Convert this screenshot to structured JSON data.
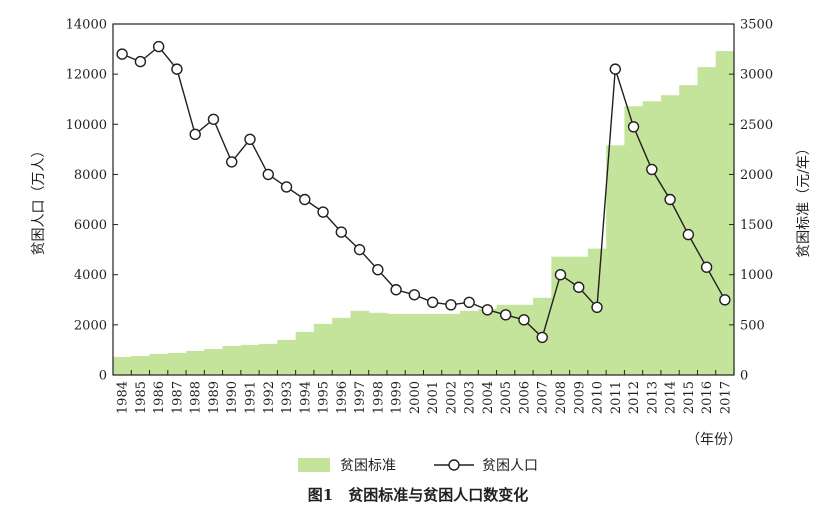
{
  "chart_data": {
    "type": "bar+line",
    "caption": "图1　贫困标准与贫困人口数变化",
    "x_unit_label": "（年份）",
    "categories": [
      "1984",
      "1985",
      "1986",
      "1987",
      "1988",
      "1989",
      "1990",
      "1991",
      "1992",
      "1993",
      "1994",
      "1995",
      "1996",
      "1997",
      "1998",
      "1999",
      "2000",
      "2001",
      "2002",
      "2003",
      "2004",
      "2005",
      "2006",
      "2007",
      "2008",
      "2009",
      "2010",
      "2011",
      "2012",
      "2013",
      "2014",
      "2015",
      "2016",
      "2017"
    ],
    "left_axis": {
      "label": "贫困人口（万人）",
      "ylim": [
        0,
        14000
      ],
      "ticks": [
        0,
        2000,
        4000,
        6000,
        8000,
        10000,
        12000,
        14000
      ]
    },
    "right_axis": {
      "label": "贫困标准（元/年）",
      "ylim": [
        0,
        3500
      ],
      "ticks": [
        0,
        500,
        1000,
        1500,
        2000,
        2500,
        3000,
        3500
      ]
    },
    "series": [
      {
        "name": "贫困标准",
        "kind": "area-step",
        "axis": "right",
        "color": "#c4e49b",
        "values": [
          180,
          190,
          210,
          220,
          240,
          260,
          290,
          300,
          310,
          350,
          430,
          510,
          570,
          640,
          620,
          610,
          610,
          610,
          610,
          640,
          660,
          700,
          700,
          770,
          1180,
          1180,
          1260,
          2290,
          2680,
          2730,
          2790,
          2890,
          3070,
          3230
        ]
      },
      {
        "name": "贫困人口",
        "kind": "line-marker",
        "axis": "left",
        "color": "#231f20",
        "values": [
          12800,
          12500,
          13100,
          12200,
          9600,
          10200,
          8500,
          9400,
          8000,
          7500,
          7000,
          6500,
          5700,
          5000,
          4200,
          3400,
          3200,
          2900,
          2800,
          2900,
          2600,
          2400,
          2200,
          1500,
          4000,
          3500,
          2700,
          12200,
          9900,
          8200,
          7000,
          5600,
          4300,
          3000
        ]
      }
    ],
    "grid": false,
    "legend_position": "bottom"
  }
}
